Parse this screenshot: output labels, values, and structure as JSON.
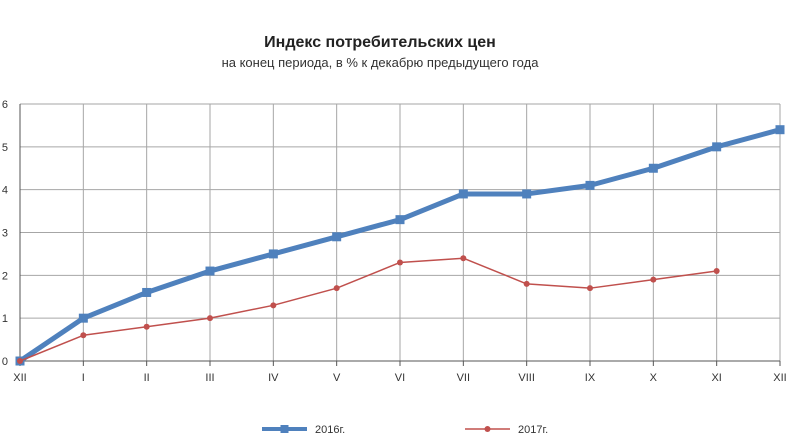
{
  "chart_data": {
    "type": "line",
    "title": "Индекс потребительских  цен",
    "subtitle": "на конец  периода, в % к декабрю предыдущего года",
    "xlabel": "",
    "ylabel": "",
    "categories": [
      "XII",
      "I",
      "II",
      "III",
      "IV",
      "V",
      "VI",
      "VII",
      "VIII",
      "IX",
      "X",
      "XI",
      "XII"
    ],
    "ylim": [
      0,
      6
    ],
    "yticks": [
      "0",
      "1",
      "2",
      "3",
      "4",
      "5",
      "6"
    ],
    "grid": true,
    "legend_position": "bottom",
    "series": [
      {
        "name": "2016г.",
        "color": "#4f81bd",
        "values": [
          0,
          1.0,
          1.6,
          2.1,
          2.5,
          2.9,
          3.3,
          3.9,
          3.9,
          4.1,
          4.5,
          5.0,
          5.4
        ]
      },
      {
        "name": "2017г.",
        "color": "#c0504d",
        "values": [
          0,
          0.6,
          0.8,
          1.0,
          1.3,
          1.7,
          2.3,
          2.4,
          1.8,
          1.7,
          1.9,
          2.1,
          null
        ]
      }
    ]
  }
}
